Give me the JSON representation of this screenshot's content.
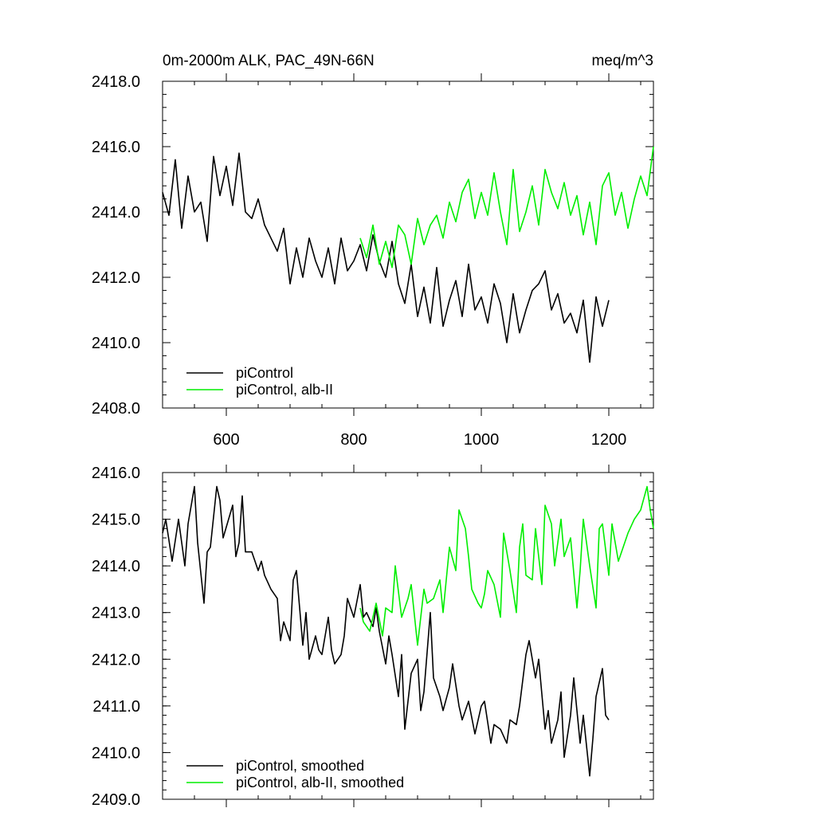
{
  "figure": {
    "title_left": "0m-2000m ALK, PAC_49N-66N",
    "title_right": "meq/m^3"
  },
  "colors": {
    "piControl": "#000000",
    "albII": "#00ee00"
  },
  "chart_data": [
    {
      "type": "line",
      "name": "raw",
      "xlim": [
        500,
        1270
      ],
      "ylim": [
        2408,
        2418
      ],
      "xticks": [
        600,
        800,
        1000,
        1200
      ],
      "xtick_labels": [
        "600",
        "800",
        "1000",
        "1200"
      ],
      "yticks": [
        2408,
        2410,
        2412,
        2414,
        2416,
        2418
      ],
      "ytick_labels": [
        "2408.0",
        "2410.0",
        "2412.0",
        "2414.0",
        "2416.0",
        "2418.0"
      ],
      "legend_position": "bottom-left",
      "series": [
        {
          "name": "piControl",
          "color_key": "piControl",
          "x": [
            500,
            510,
            520,
            530,
            540,
            550,
            560,
            570,
            580,
            590,
            600,
            610,
            620,
            630,
            640,
            650,
            660,
            670,
            680,
            690,
            700,
            710,
            720,
            730,
            740,
            750,
            760,
            770,
            780,
            790,
            800,
            810,
            820,
            830,
            840,
            850,
            860,
            870,
            880,
            890,
            900,
            910,
            920,
            930,
            940,
            950,
            960,
            970,
            980,
            990,
            1000,
            1010,
            1020,
            1030,
            1040,
            1050,
            1060,
            1070,
            1080,
            1090,
            1100,
            1110,
            1120,
            1130,
            1140,
            1150,
            1160,
            1170,
            1180,
            1190,
            1200
          ],
          "y": [
            2414.6,
            2413.9,
            2415.6,
            2413.5,
            2415.1,
            2414.0,
            2414.3,
            2413.1,
            2415.7,
            2414.5,
            2415.4,
            2414.2,
            2415.8,
            2414.0,
            2413.8,
            2414.4,
            2413.6,
            2413.2,
            2412.8,
            2413.5,
            2411.8,
            2412.9,
            2412.0,
            2413.2,
            2412.5,
            2412.0,
            2412.9,
            2411.8,
            2413.2,
            2412.2,
            2412.5,
            2413.0,
            2412.2,
            2413.3,
            2412.5,
            2412.0,
            2413.1,
            2411.8,
            2411.2,
            2412.4,
            2410.8,
            2411.7,
            2410.6,
            2412.3,
            2410.5,
            2411.3,
            2411.9,
            2410.8,
            2412.4,
            2411.0,
            2411.4,
            2410.6,
            2411.8,
            2411.2,
            2410.0,
            2411.5,
            2410.3,
            2411.0,
            2411.6,
            2411.8,
            2412.2,
            2411.0,
            2411.5,
            2410.6,
            2410.9,
            2410.3,
            2411.3,
            2409.4,
            2411.4,
            2410.5,
            2411.3
          ]
        },
        {
          "name": "piControl, alb-II",
          "color_key": "albII",
          "x": [
            810,
            820,
            830,
            840,
            850,
            860,
            870,
            880,
            890,
            900,
            910,
            920,
            930,
            940,
            950,
            960,
            970,
            980,
            990,
            1000,
            1010,
            1020,
            1030,
            1040,
            1050,
            1060,
            1070,
            1080,
            1090,
            1100,
            1110,
            1120,
            1130,
            1140,
            1150,
            1160,
            1170,
            1180,
            1190,
            1200,
            1210,
            1220,
            1230,
            1240,
            1250,
            1260,
            1270
          ],
          "y": [
            2413.2,
            2412.6,
            2413.6,
            2412.4,
            2413.1,
            2412.3,
            2413.6,
            2413.3,
            2412.4,
            2413.8,
            2413.0,
            2413.6,
            2413.9,
            2413.2,
            2414.3,
            2413.7,
            2414.6,
            2415.0,
            2413.8,
            2414.6,
            2413.9,
            2415.2,
            2414.0,
            2413.0,
            2415.3,
            2413.4,
            2414.0,
            2414.8,
            2413.6,
            2415.3,
            2414.6,
            2414.1,
            2414.9,
            2413.9,
            2414.5,
            2413.3,
            2414.3,
            2413.0,
            2414.8,
            2415.2,
            2413.9,
            2414.6,
            2413.5,
            2414.4,
            2415.1,
            2414.5,
            2416.0
          ]
        }
      ],
      "legend": [
        "piControl",
        "piControl, alb-II"
      ]
    },
    {
      "type": "line",
      "name": "smoothed",
      "xlim": [
        500,
        1270
      ],
      "ylim": [
        2409,
        2416
      ],
      "xticks": [
        600,
        800,
        1000,
        1200
      ],
      "yticks": [
        2409,
        2410,
        2411,
        2412,
        2413,
        2414,
        2415,
        2416
      ],
      "ytick_labels": [
        "2409.0",
        "2410.0",
        "2411.0",
        "2412.0",
        "2413.0",
        "2414.0",
        "2415.0",
        "2416.0"
      ],
      "legend_position": "bottom-left",
      "series": [
        {
          "name": "piControl, smoothed",
          "color_key": "piControl",
          "x": [
            500,
            505,
            515,
            525,
            535,
            540,
            550,
            555,
            565,
            570,
            575,
            585,
            590,
            595,
            610,
            615,
            620,
            625,
            630,
            640,
            650,
            655,
            660,
            670,
            680,
            685,
            690,
            700,
            705,
            710,
            720,
            725,
            730,
            740,
            745,
            750,
            760,
            765,
            770,
            780,
            785,
            790,
            800,
            810,
            815,
            820,
            830,
            835,
            840,
            850,
            855,
            860,
            870,
            875,
            880,
            890,
            900,
            905,
            910,
            920,
            925,
            935,
            940,
            950,
            955,
            965,
            970,
            980,
            990,
            1000,
            1005,
            1015,
            1020,
            1030,
            1040,
            1045,
            1055,
            1060,
            1070,
            1075,
            1085,
            1090,
            1100,
            1105,
            1110,
            1120,
            1125,
            1130,
            1140,
            1145,
            1155,
            1160,
            1170,
            1175,
            1180,
            1190,
            1195,
            1200
          ],
          "y": [
            2414.7,
            2415.0,
            2414.1,
            2415.0,
            2414.0,
            2414.9,
            2415.7,
            2414.5,
            2413.2,
            2414.3,
            2414.4,
            2415.7,
            2415.4,
            2414.6,
            2415.3,
            2414.2,
            2414.5,
            2415.5,
            2414.3,
            2414.3,
            2413.9,
            2414.1,
            2413.8,
            2413.5,
            2413.3,
            2412.4,
            2412.8,
            2412.4,
            2413.7,
            2413.9,
            2412.3,
            2413.0,
            2412.0,
            2412.5,
            2412.2,
            2412.1,
            2412.9,
            2412.2,
            2411.9,
            2412.1,
            2412.5,
            2413.3,
            2412.9,
            2413.6,
            2412.9,
            2413.0,
            2412.7,
            2413.1,
            2412.6,
            2411.9,
            2412.5,
            2412.1,
            2411.2,
            2412.1,
            2410.5,
            2411.7,
            2412.0,
            2410.9,
            2411.3,
            2413.0,
            2411.6,
            2411.2,
            2410.9,
            2411.4,
            2411.9,
            2411.0,
            2410.7,
            2411.1,
            2410.4,
            2411.0,
            2411.1,
            2410.2,
            2410.6,
            2410.5,
            2410.2,
            2410.7,
            2410.6,
            2411.0,
            2412.1,
            2412.4,
            2411.6,
            2412.0,
            2410.5,
            2410.9,
            2410.2,
            2410.7,
            2411.3,
            2409.9,
            2410.8,
            2411.6,
            2410.2,
            2410.8,
            2409.5,
            2410.3,
            2411.2,
            2411.8,
            2410.8,
            2410.7
          ]
        },
        {
          "name": "piControl, alb-II, smoothed",
          "color_key": "albII",
          "x": [
            810,
            815,
            825,
            835,
            845,
            850,
            860,
            865,
            875,
            885,
            890,
            900,
            910,
            915,
            925,
            935,
            940,
            950,
            960,
            965,
            975,
            980,
            985,
            995,
            1000,
            1005,
            1010,
            1020,
            1030,
            1035,
            1045,
            1055,
            1060,
            1065,
            1070,
            1080,
            1085,
            1095,
            1100,
            1110,
            1115,
            1125,
            1130,
            1140,
            1150,
            1155,
            1160,
            1170,
            1180,
            1185,
            1190,
            1200,
            1205,
            1215,
            1220,
            1230,
            1240,
            1250,
            1260,
            1265,
            1270
          ],
          "y": [
            2413.1,
            2412.8,
            2412.6,
            2413.2,
            2412.5,
            2413.1,
            2413.0,
            2414.0,
            2412.9,
            2413.3,
            2413.6,
            2412.3,
            2413.5,
            2413.2,
            2413.3,
            2413.7,
            2413.0,
            2414.4,
            2413.9,
            2415.2,
            2414.8,
            2414.2,
            2413.5,
            2413.2,
            2413.1,
            2413.4,
            2413.9,
            2413.6,
            2412.9,
            2414.7,
            2413.9,
            2413.0,
            2414.4,
            2414.9,
            2413.8,
            2413.7,
            2414.8,
            2413.6,
            2415.3,
            2414.9,
            2414.0,
            2415.0,
            2414.2,
            2414.6,
            2413.1,
            2413.9,
            2415.0,
            2414.0,
            2413.1,
            2414.8,
            2414.9,
            2413.8,
            2414.9,
            2414.1,
            2414.3,
            2414.7,
            2415.0,
            2415.2,
            2415.7,
            2415.2,
            2414.8
          ]
        }
      ],
      "legend": [
        "piControl, smoothed",
        "piControl, alb-II, smoothed"
      ]
    }
  ]
}
